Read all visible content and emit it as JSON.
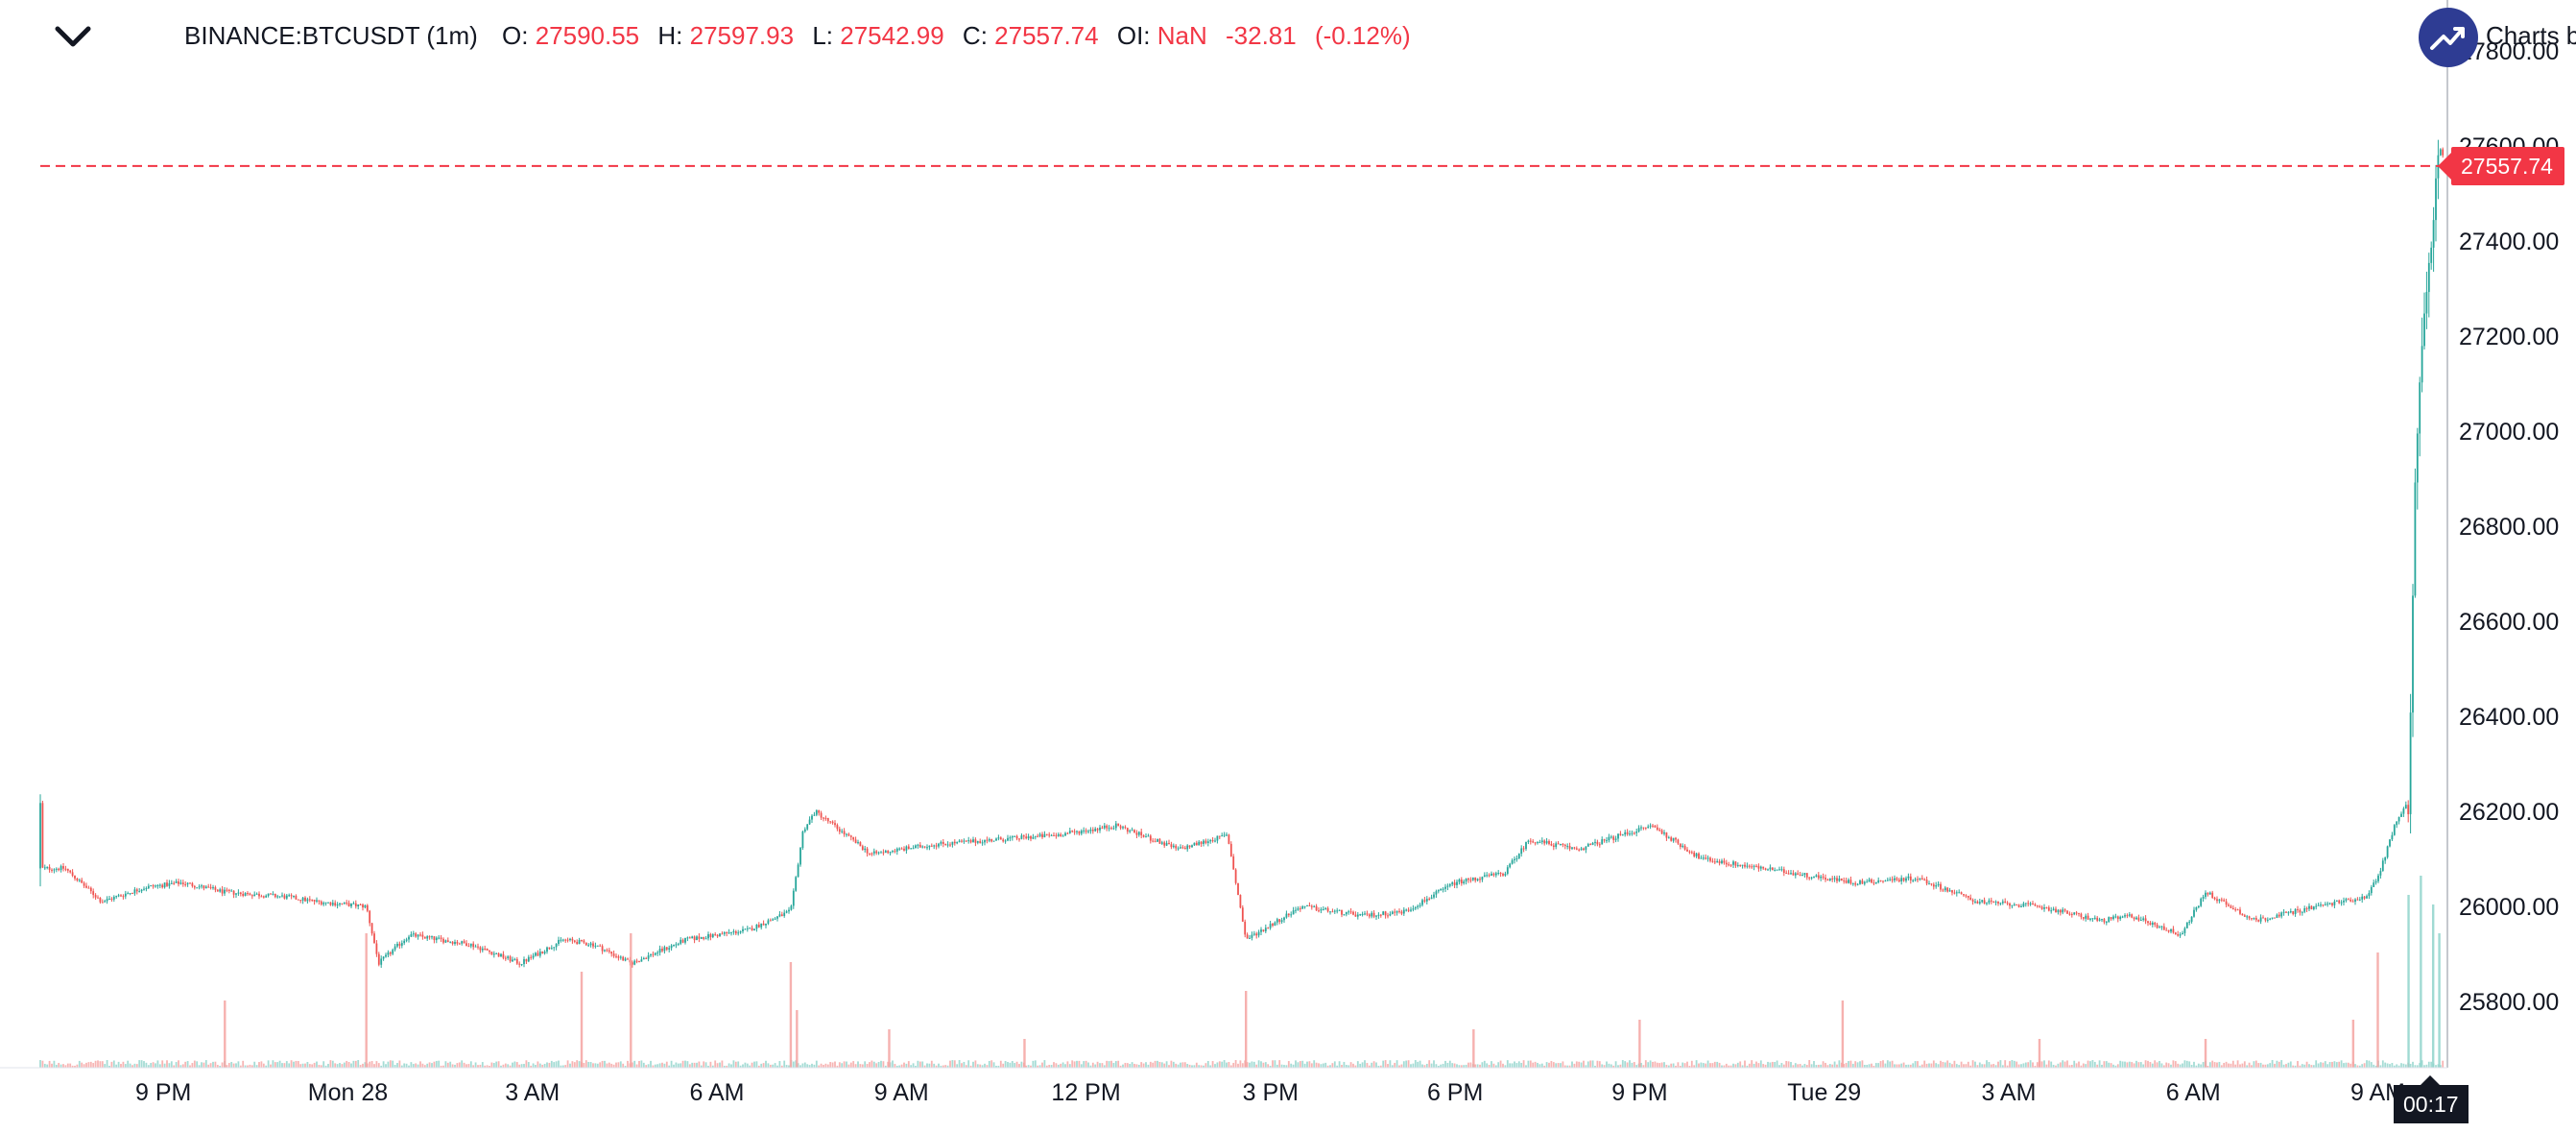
{
  "legend": {
    "symbol": "BINANCE:BTCUSDT (1m)",
    "o_label": "O:",
    "o_value": "27590.55",
    "h_label": "H:",
    "h_value": "27597.93",
    "l_label": "L:",
    "l_value": "27542.99",
    "c_label": "C:",
    "c_value": "27557.74",
    "oi_label": "OI:",
    "oi_value": "NaN",
    "change": "-32.81",
    "change_pct": "(-0.12%)"
  },
  "brand": {
    "text": "Charts by"
  },
  "icons": {
    "collapse": "chevron-down-icon",
    "brand": "trend-up-icon"
  },
  "colors": {
    "up": "#26a69a",
    "down": "#ef5350",
    "last_price": "#f23645",
    "text": "#131722"
  },
  "last_price_tag": "27557.74",
  "countdown": "00:17",
  "chart_data": {
    "type": "candlestick",
    "y_axis": {
      "range": [
        25700,
        27800
      ],
      "ticks": [
        "25800.00",
        "26000.00",
        "26200.00",
        "26400.00",
        "26600.00",
        "26800.00",
        "27000.00",
        "27200.00",
        "27400.00",
        "27600.00",
        "27800.00"
      ],
      "tick_values": [
        25800,
        26000,
        26200,
        26400,
        26600,
        26800,
        27000,
        27200,
        27400,
        27600,
        27800
      ]
    },
    "x_axis": {
      "ticks": [
        "9 PM",
        "Mon 28",
        "3 AM",
        "6 AM",
        "9 AM",
        "12 PM",
        "3 PM",
        "6 PM",
        "9 PM",
        "Tue 29",
        "3 AM",
        "6 AM",
        "9 AM"
      ],
      "tick_hours": [
        3,
        6,
        9,
        12,
        15,
        18,
        21,
        24,
        27,
        30,
        33,
        36,
        39
      ],
      "range_hours": [
        1,
        40.1
      ]
    },
    "last_price": 27557.74,
    "price_path": [
      [
        1.0,
        26080
      ],
      [
        1.4,
        26080
      ],
      [
        2.0,
        26010
      ],
      [
        2.7,
        26040
      ],
      [
        3.3,
        26050
      ],
      [
        4.0,
        26030
      ],
      [
        5.0,
        26020
      ],
      [
        5.5,
        26010
      ],
      [
        6.3,
        26000
      ],
      [
        6.5,
        25880
      ],
      [
        7.0,
        25940
      ],
      [
        8.0,
        25920
      ],
      [
        8.8,
        25880
      ],
      [
        9.5,
        25930
      ],
      [
        10.0,
        25920
      ],
      [
        10.6,
        25880
      ],
      [
        11.5,
        25930
      ],
      [
        12.5,
        25950
      ],
      [
        13.2,
        25990
      ],
      [
        13.4,
        26160
      ],
      [
        13.6,
        26200
      ],
      [
        14.5,
        26110
      ],
      [
        15.5,
        26130
      ],
      [
        16.5,
        26140
      ],
      [
        17.5,
        26150
      ],
      [
        18.5,
        26170
      ],
      [
        19.5,
        26120
      ],
      [
        20.3,
        26150
      ],
      [
        20.6,
        25930
      ],
      [
        21.5,
        26000
      ],
      [
        22.5,
        25980
      ],
      [
        23.2,
        25990
      ],
      [
        24.0,
        26050
      ],
      [
        24.8,
        26070
      ],
      [
        25.2,
        26140
      ],
      [
        26.0,
        26120
      ],
      [
        26.7,
        26150
      ],
      [
        27.2,
        26170
      ],
      [
        28.0,
        26100
      ],
      [
        29.0,
        26080
      ],
      [
        29.5,
        26070
      ],
      [
        30.5,
        26050
      ],
      [
        31.5,
        26060
      ],
      [
        32.5,
        26010
      ],
      [
        33.5,
        26000
      ],
      [
        34.5,
        25970
      ],
      [
        35.0,
        25980
      ],
      [
        35.8,
        25940
      ],
      [
        36.2,
        26030
      ],
      [
        37.0,
        25970
      ],
      [
        38.0,
        26000
      ],
      [
        38.8,
        26020
      ],
      [
        39.0,
        26060
      ],
      [
        39.3,
        26180
      ],
      [
        39.5,
        26220
      ],
      [
        39.6,
        26900
      ],
      [
        39.7,
        27150
      ],
      [
        39.8,
        27300
      ],
      [
        39.9,
        27450
      ],
      [
        40.0,
        27600
      ],
      [
        40.1,
        27558
      ]
    ],
    "volume_spikes": [
      [
        4.0,
        0.35
      ],
      [
        6.3,
        0.7
      ],
      [
        9.8,
        0.5
      ],
      [
        10.6,
        0.7
      ],
      [
        13.2,
        0.55
      ],
      [
        13.3,
        0.3
      ],
      [
        14.8,
        0.2
      ],
      [
        17.0,
        0.15
      ],
      [
        20.6,
        0.4
      ],
      [
        24.3,
        0.2
      ],
      [
        27.0,
        0.25
      ],
      [
        30.3,
        0.35
      ],
      [
        33.5,
        0.15
      ],
      [
        36.2,
        0.15
      ],
      [
        38.6,
        0.25
      ],
      [
        39.0,
        0.6
      ],
      [
        39.5,
        0.9
      ],
      [
        39.7,
        1.0
      ],
      [
        39.9,
        0.85
      ],
      [
        40.0,
        0.7
      ]
    ]
  }
}
